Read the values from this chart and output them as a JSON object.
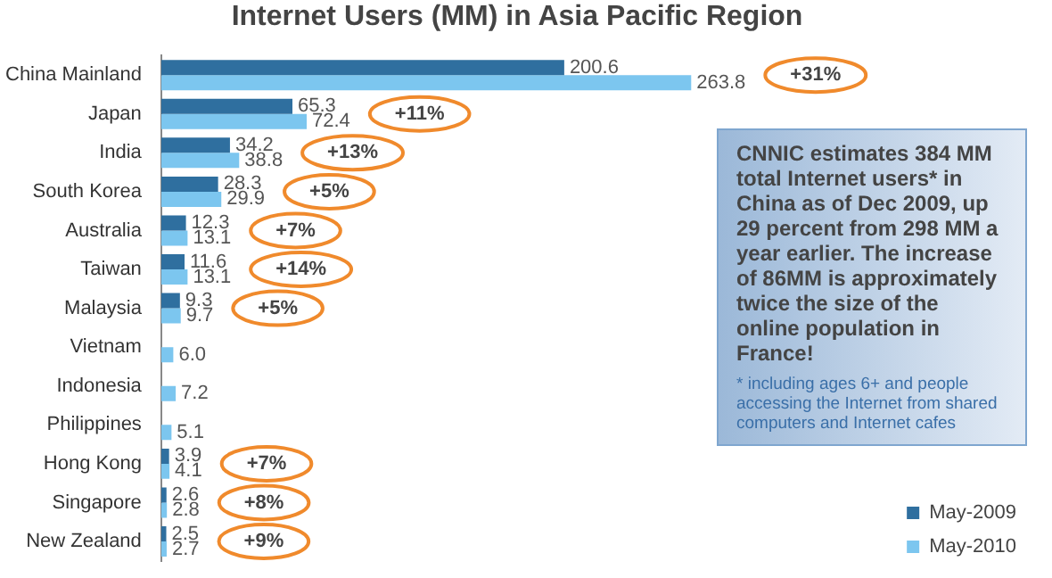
{
  "chart_data": {
    "type": "bar",
    "orientation": "horizontal",
    "title": "Internet Users (MM) in Asia Pacific Region",
    "categories": [
      "China Mainland",
      "Japan",
      "India",
      "South Korea",
      "Australia",
      "Taiwan",
      "Malaysia",
      "Vietnam",
      "Indonesia",
      "Philippines",
      "Hong Kong",
      "Singapore",
      "New Zealand"
    ],
    "series": [
      {
        "name": "May-2009",
        "color": "#2f6f9f",
        "values": [
          200.6,
          65.3,
          34.2,
          28.3,
          12.3,
          11.6,
          9.3,
          null,
          null,
          null,
          3.9,
          2.6,
          2.5
        ],
        "value_labels": [
          "200.6",
          "65.3",
          "34.2",
          "28.3",
          "12.3",
          "11.6",
          "9.3",
          null,
          null,
          null,
          "3.9",
          "2.6",
          "2.5"
        ]
      },
      {
        "name": "May-2010",
        "color": "#7cc6ef",
        "values": [
          263.8,
          72.4,
          38.8,
          29.9,
          13.1,
          13.1,
          9.7,
          6.0,
          7.2,
          5.1,
          4.1,
          2.8,
          2.7
        ],
        "value_labels": [
          "263.8",
          "72.4",
          "38.8",
          "29.9",
          "13.1",
          "13.1",
          "9.7",
          "6.0",
          "7.2",
          "5.1",
          "4.1",
          "2.8",
          "2.7"
        ]
      }
    ],
    "legend": "bottom right",
    "annotations": [
      "+31%",
      "+11%",
      "+13%",
      "+5%",
      "+7%",
      "+14%",
      "+5%",
      "+7%",
      "+8%",
      "+9%",
      "CNNIC estimates 384 MM total Internet users* in China as of Dec 2009, up 29 percent from 298 MM  a year earlier. The increase of 86MM is approximately twice the size of the online population in France!",
      "* including ages 6+ and people accessing the Internet  from shared computers and Internet cafes"
    ]
  }
}
